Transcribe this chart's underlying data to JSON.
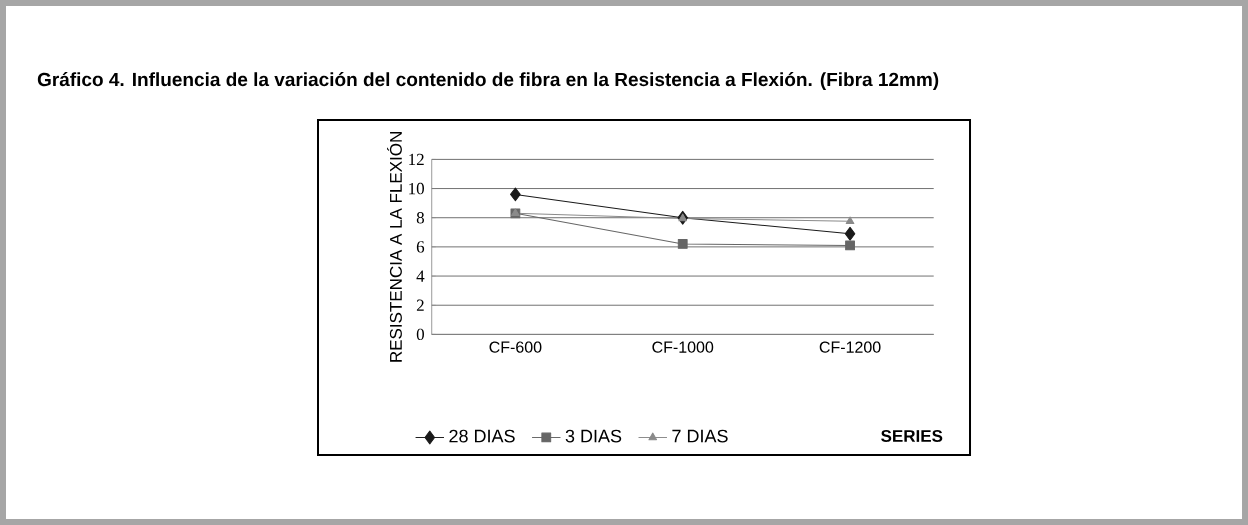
{
  "chart_data": {
    "type": "line",
    "title": "Gráfico 4. Influencia de la variación del contenido de fibra en la Resistencia a Flexión. (Fibra 12mm)",
    "ylabel": "RESISTENCIA A LA FLEXIÓN",
    "xlabel": "SERIES",
    "categories": [
      "CF-600",
      "CF-1000",
      "CF-1200"
    ],
    "series": [
      {
        "name": "28 DIAS",
        "color": "#1a1a1a",
        "marker": "diamond",
        "values": [
          9.6,
          8.0,
          6.9
        ]
      },
      {
        "name": "3 DIAS",
        "color": "#666666",
        "marker": "square",
        "values": [
          8.3,
          6.2,
          6.1
        ]
      },
      {
        "name": "7 DIAS",
        "color": "#8a8a8a",
        "marker": "triangle",
        "values": [
          8.3,
          7.95,
          7.75
        ]
      }
    ],
    "ylim": [
      0,
      12
    ],
    "yticks": [
      0,
      2,
      4,
      6,
      8,
      10,
      12
    ],
    "grid": "y",
    "legend": "bottom"
  }
}
